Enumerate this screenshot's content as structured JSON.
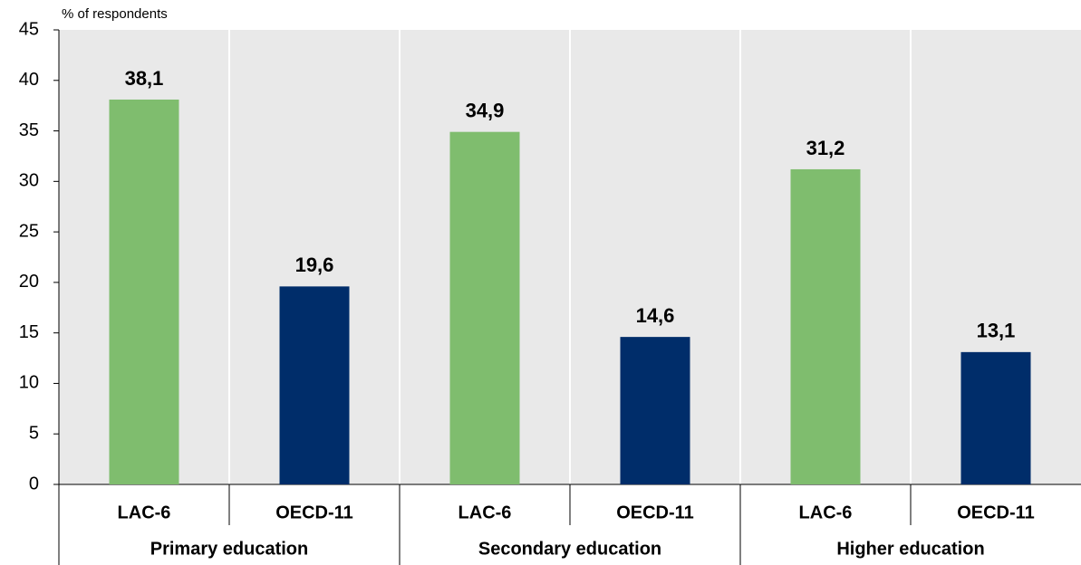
{
  "chart_data": {
    "type": "bar",
    "y_axis_label": "% of respondents",
    "categories": [
      "Primary education",
      "Secondary education",
      "Higher education"
    ],
    "series": [
      {
        "name": "LAC-6",
        "color": "#7fbd6e",
        "values": [
          38.1,
          34.9,
          31.2
        ],
        "value_labels": [
          "38,1",
          "34,9",
          "31,2"
        ]
      },
      {
        "name": "OECD-11",
        "color": "#002d6a",
        "values": [
          19.6,
          14.6,
          13.1
        ],
        "value_labels": [
          "19,6",
          "14,6",
          "13,1"
        ]
      }
    ],
    "ylim": [
      0,
      45
    ],
    "yticks": [
      0,
      5,
      10,
      15,
      20,
      25,
      30,
      35,
      40,
      45
    ]
  }
}
